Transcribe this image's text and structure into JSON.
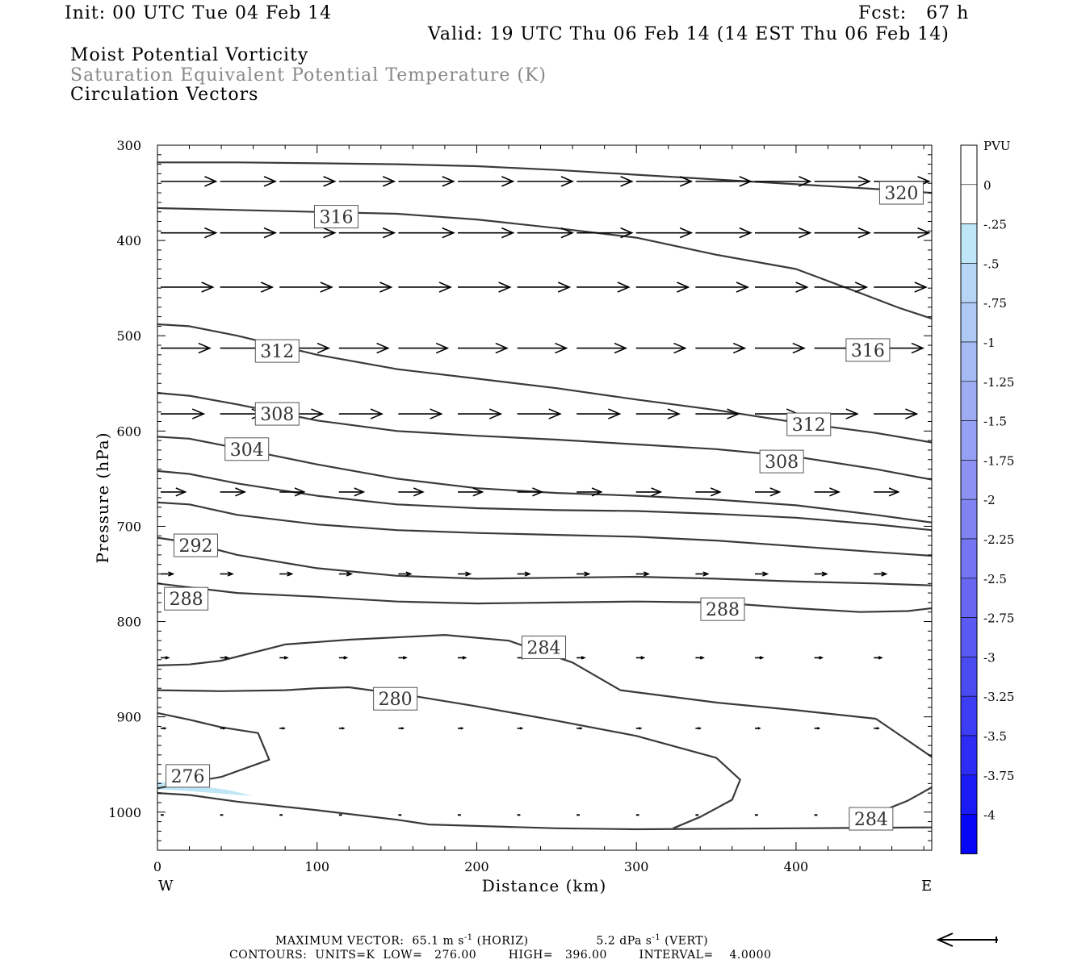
{
  "header": {
    "init": "Init: 00 UTC Tue 04 Feb 14",
    "fcst": "Fcst:   67 h",
    "valid": "Valid: 19 UTC Thu 06 Feb 14 (14 EST Thu 06 Feb 14)",
    "field1": "Moist Potential Vorticity",
    "field2": "Saturation Equivalent Potential Temperature (K)",
    "field3": "Circulation Vectors"
  },
  "footer": {
    "max_vector": "MAXIMUM VECTOR:  65.1 m s",
    "horiz": " (HORIZ)",
    "vert_val": "5.2 dPa s",
    "vert": " (VERT)",
    "exp": "-1",
    "contours": "CONTOURS:  UNITS=K  LOW=   276.00        HIGH=   396.00        INTERVAL=    4.0000"
  },
  "colors": {
    "contour": "#3a3a3a",
    "arrow": "#000000",
    "pv_light": "#bfe6f7"
  },
  "chart_data": {
    "type": "contour-cross-section",
    "xlabel": "Distance (km)",
    "ylabel": "Pressure (hPa)",
    "xlim": [
      0,
      485
    ],
    "ylim": [
      1040,
      300
    ],
    "x_ticks": [
      0,
      100,
      200,
      300,
      400
    ],
    "y_ticks": [
      300,
      400,
      500,
      600,
      700,
      800,
      900,
      1000
    ],
    "x_end_labels": {
      "left": "W",
      "right": "E"
    },
    "contour_lines": [
      {
        "points": [
          [
            0,
            318
          ],
          [
            50,
            318
          ],
          [
            100,
            319
          ],
          [
            150,
            320
          ],
          [
            200,
            322
          ],
          [
            250,
            326
          ],
          [
            300,
            331
          ],
          [
            350,
            336
          ],
          [
            400,
            341
          ],
          [
            460,
            347
          ],
          [
            485,
            350
          ]
        ]
      },
      {
        "points": [
          [
            0,
            366
          ],
          [
            50,
            368
          ],
          [
            100,
            370
          ],
          [
            150,
            372
          ],
          [
            200,
            378
          ],
          [
            250,
            387
          ],
          [
            300,
            397
          ],
          [
            350,
            415
          ],
          [
            400,
            430
          ],
          [
            440,
            455
          ],
          [
            465,
            471
          ],
          [
            485,
            482
          ]
        ]
      },
      {
        "points": [
          [
            0,
            488
          ],
          [
            20,
            490
          ],
          [
            50,
            500
          ],
          [
            100,
            520
          ],
          [
            150,
            535
          ],
          [
            200,
            545
          ],
          [
            250,
            555
          ],
          [
            300,
            567
          ],
          [
            350,
            578
          ],
          [
            400,
            591
          ],
          [
            450,
            602
          ],
          [
            485,
            612
          ]
        ]
      },
      {
        "points": [
          [
            0,
            560
          ],
          [
            20,
            563
          ],
          [
            50,
            572
          ],
          [
            100,
            589
          ],
          [
            150,
            600
          ],
          [
            200,
            605
          ],
          [
            250,
            609
          ],
          [
            300,
            614
          ],
          [
            350,
            619
          ],
          [
            400,
            627
          ],
          [
            450,
            640
          ],
          [
            485,
            651
          ]
        ]
      },
      {
        "points": [
          [
            0,
            606
          ],
          [
            20,
            608
          ],
          [
            50,
            618
          ],
          [
            100,
            635
          ],
          [
            150,
            650
          ],
          [
            200,
            660
          ],
          [
            250,
            665
          ],
          [
            300,
            668
          ],
          [
            350,
            672
          ],
          [
            400,
            678
          ],
          [
            450,
            688
          ],
          [
            485,
            696
          ]
        ]
      },
      {
        "points": [
          [
            0,
            642
          ],
          [
            20,
            645
          ],
          [
            50,
            655
          ],
          [
            100,
            668
          ],
          [
            150,
            677
          ],
          [
            200,
            681
          ],
          [
            250,
            683
          ],
          [
            300,
            684
          ],
          [
            350,
            687
          ],
          [
            400,
            691
          ],
          [
            450,
            698
          ],
          [
            485,
            704
          ]
        ]
      },
      {
        "points": [
          [
            0,
            675
          ],
          [
            20,
            677
          ],
          [
            50,
            688
          ],
          [
            100,
            698
          ],
          [
            150,
            704
          ],
          [
            200,
            707
          ],
          [
            250,
            709
          ],
          [
            300,
            711
          ],
          [
            350,
            715
          ],
          [
            400,
            721
          ],
          [
            450,
            727
          ],
          [
            485,
            731
          ]
        ]
      },
      {
        "points": [
          [
            0,
            712
          ],
          [
            20,
            717
          ],
          [
            50,
            730
          ],
          [
            100,
            744
          ],
          [
            150,
            752
          ],
          [
            200,
            755
          ],
          [
            250,
            754
          ],
          [
            300,
            753
          ],
          [
            350,
            755
          ],
          [
            400,
            758
          ],
          [
            450,
            760
          ],
          [
            485,
            762
          ]
        ]
      },
      {
        "points": [
          [
            0,
            760
          ],
          [
            50,
            770
          ],
          [
            100,
            774
          ],
          [
            150,
            779
          ],
          [
            200,
            781
          ],
          [
            250,
            780
          ],
          [
            300,
            779
          ],
          [
            350,
            780
          ],
          [
            400,
            786
          ],
          [
            440,
            790
          ],
          [
            470,
            789
          ],
          [
            485,
            786
          ]
        ]
      },
      {
        "points": [
          [
            0,
            846
          ],
          [
            20,
            845
          ],
          [
            40,
            841
          ],
          [
            80,
            824
          ],
          [
            120,
            819
          ],
          [
            180,
            814
          ],
          [
            220,
            820
          ],
          [
            260,
            843
          ],
          [
            290,
            872
          ],
          [
            350,
            885
          ],
          [
            400,
            893
          ],
          [
            450,
            902
          ],
          [
            485,
            942
          ]
        ]
      },
      {
        "points": [
          [
            0,
            872
          ],
          [
            40,
            873
          ],
          [
            80,
            872
          ],
          [
            100,
            870
          ],
          [
            120,
            869
          ],
          [
            160,
            878
          ],
          [
            200,
            889
          ],
          [
            250,
            904
          ],
          [
            300,
            920
          ],
          [
            350,
            943
          ],
          [
            365,
            966
          ],
          [
            360,
            987
          ],
          [
            340,
            1005
          ],
          [
            323,
            1017
          ]
        ]
      },
      {
        "points": [
          [
            0,
            896
          ],
          [
            20,
            903
          ],
          [
            40,
            911
          ],
          [
            63,
            917
          ],
          [
            70,
            945
          ],
          [
            40,
            963
          ],
          [
            0,
            975
          ]
        ]
      },
      {
        "points": [
          [
            0,
            980
          ],
          [
            20,
            982
          ],
          [
            50,
            989
          ],
          [
            100,
            998
          ],
          [
            150,
            1008
          ],
          [
            170,
            1013
          ],
          [
            250,
            1017
          ],
          [
            300,
            1018
          ],
          [
            400,
            1017
          ],
          [
            485,
            1016
          ]
        ]
      },
      {
        "points": [
          [
            485,
            974
          ],
          [
            470,
            988
          ],
          [
            455,
            998
          ]
        ]
      }
    ],
    "contour_labels": [
      {
        "text": "320",
        "x": 466,
        "y": 350
      },
      {
        "text": "316",
        "x": 112,
        "y": 375
      },
      {
        "text": "316",
        "x": 445,
        "y": 515
      },
      {
        "text": "312",
        "x": 75,
        "y": 516
      },
      {
        "text": "312",
        "x": 408,
        "y": 593
      },
      {
        "text": "308",
        "x": 75,
        "y": 582
      },
      {
        "text": "308",
        "x": 391,
        "y": 632
      },
      {
        "text": "304",
        "x": 56,
        "y": 619
      },
      {
        "text": "292",
        "x": 24,
        "y": 720
      },
      {
        "text": "288",
        "x": 18,
        "y": 776
      },
      {
        "text": "288",
        "x": 354,
        "y": 787
      },
      {
        "text": "284",
        "x": 242,
        "y": 827
      },
      {
        "text": "284",
        "x": 447,
        "y": 1007
      },
      {
        "text": "280",
        "x": 149,
        "y": 881
      },
      {
        "text": "276",
        "x": 19,
        "y": 962
      }
    ],
    "pv_regions": [
      {
        "pv_min": -0.5,
        "pv_max": -0.25,
        "points": [
          [
            0,
            968
          ],
          [
            20,
            971
          ],
          [
            45,
            977
          ],
          [
            60,
            983
          ],
          [
            20,
            978
          ],
          [
            0,
            976
          ]
        ]
      }
    ],
    "vector_rows": [
      {
        "p": 338,
        "u": 1.8,
        "w": 0
      },
      {
        "p": 392,
        "u": 1.8,
        "w": 0
      },
      {
        "p": 449,
        "u": 1.7,
        "w": 0
      },
      {
        "p": 513,
        "u": 1.6,
        "w": 0
      },
      {
        "p": 582,
        "u": 1.4,
        "w": 0
      },
      {
        "p": 664,
        "u": 0.8,
        "w": 0
      },
      {
        "p": 750,
        "u": 0.4,
        "w": 0
      },
      {
        "p": 838,
        "u": 0.25,
        "w": 0
      },
      {
        "p": 912,
        "u": 0.15,
        "w": 0
      },
      {
        "p": 1003,
        "u": 0.1,
        "w": 0
      }
    ],
    "colorbar": {
      "title": "PVU",
      "ticks": [
        "0",
        "-.25",
        "-.5",
        "-.75",
        "-1",
        "-1.25",
        "-1.5",
        "-1.75",
        "-2",
        "-2.25",
        "-2.5",
        "-2.75",
        "-3",
        "-3.25",
        "-3.5",
        "-3.75",
        "-4"
      ],
      "colors": [
        "#ffffff",
        "#ffffff",
        "#bfe6f7",
        "#b7d6f5",
        "#aec9f4",
        "#a6bbf4",
        "#9eadf3",
        "#97a1f3",
        "#8c91f2",
        "#8083f2",
        "#7475f2",
        "#6767f2",
        "#5a5af2",
        "#4b4bf2",
        "#3c3cf3",
        "#2c2cf4",
        "#1a1af5",
        "#0606f6"
      ]
    },
    "reference_vector_label": "MAXIMUM VECTOR"
  }
}
